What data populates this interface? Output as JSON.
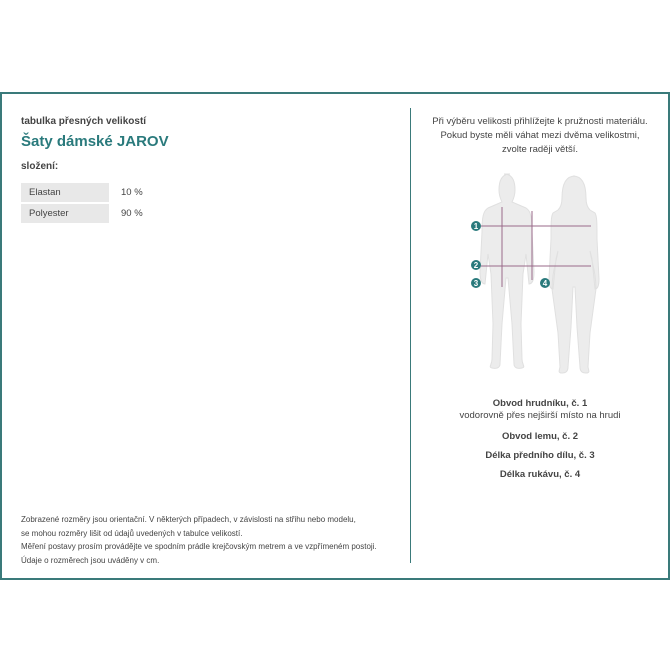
{
  "header": {
    "subtitle": "tabulka přesných velikostí",
    "title": "Šaty dámské JAROV",
    "composition_label": "složení:"
  },
  "composition": [
    {
      "material": "Elastan",
      "percent": "10 %"
    },
    {
      "material": "Polyester",
      "percent": "90 %"
    }
  ],
  "footer": [
    "Zobrazené rozměry jsou orientační. V některých případech, v závislosti na střihu nebo modelu,",
    "se mohou rozměry lišit od údajů uvedených v tabulce velikostí.",
    "Měření postavy prosím provádějte ve spodním prádle krejčovským metrem a ve vzpřímeném postoji.",
    "Údaje o rozměrech jsou uváděny v cm."
  ],
  "note": [
    "Při výběru velikosti přihlížejte k pružnosti materiálu.",
    "Pokud byste měli váhat mezi dvěma velikostmi,",
    "zvolte raději větší."
  ],
  "figure": {
    "markers": [
      "1",
      "2",
      "3",
      "4"
    ],
    "marker_color": "#2a7a7c",
    "line_color": "#9a6a8a"
  },
  "legend": [
    {
      "title": "Obvod hrudníku, č. 1",
      "desc": "vodorovně přes nejširší místo na hrudi"
    },
    {
      "title": "Obvod lemu, č. 2"
    },
    {
      "title": "Délka předního dílu, č. 3"
    },
    {
      "title": "Délka rukávu, č. 4"
    }
  ],
  "colors": {
    "accent": "#2a7a7c",
    "border": "#3a7a7a"
  }
}
